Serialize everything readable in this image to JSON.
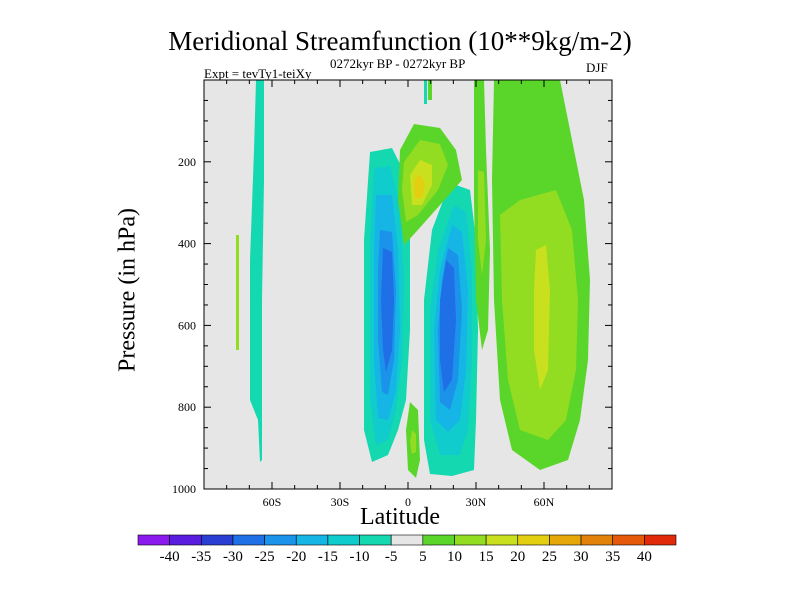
{
  "chart_data": {
    "type": "heatmap",
    "title": "Meridional Streamfunction (10**9kg/m-2)",
    "subtitle_left": "Expt = tevTy1-teiXy",
    "subtitle_center": "0272kyr BP - 0272kyr BP",
    "subtitle_right": "DJF",
    "xlabel": "Latitude",
    "ylabel": "Pressure (in hPa)",
    "xlim": [
      -90,
      90
    ],
    "ylim": [
      0,
      1000
    ],
    "y_inverted": true,
    "x_ticks": [
      {
        "value": -60,
        "label": "60S"
      },
      {
        "value": -30,
        "label": "30S"
      },
      {
        "value": 0,
        "label": "0"
      },
      {
        "value": 30,
        "label": "30N"
      },
      {
        "value": 60,
        "label": "60N"
      }
    ],
    "y_ticks": [
      {
        "value": 200,
        "label": "200"
      },
      {
        "value": 400,
        "label": "400"
      },
      {
        "value": 600,
        "label": "600"
      },
      {
        "value": 800,
        "label": "800"
      },
      {
        "value": 1000,
        "label": "1000"
      }
    ],
    "colorbar": {
      "levels": [
        -40,
        -35,
        -30,
        -25,
        -20,
        -15,
        -10,
        -5,
        5,
        10,
        15,
        20,
        25,
        30,
        35,
        40
      ],
      "colors": [
        "#8b1aef",
        "#5a1de0",
        "#2b3ed4",
        "#1f6fe6",
        "#1c93ea",
        "#15b5e6",
        "#10cccc",
        "#14d8b0",
        "#e6e6e6",
        "#5ad52a",
        "#92dc22",
        "#c8e01e",
        "#e3cf10",
        "#e5a808",
        "#e38208",
        "#e45a0a",
        "#e02a0a"
      ]
    },
    "background_color": "#e6e6e6",
    "features": [
      {
        "name": "southern high-latitude cell",
        "sign": "negative",
        "lat_range": [
          -66,
          -64
        ],
        "p_range": [
          0,
          920
        ],
        "peak": -7
      },
      {
        "name": "southern tropical cell",
        "sign": "negative",
        "lat_range": [
          -18,
          1
        ],
        "p_range": [
          170,
          950
        ],
        "peak": -27
      },
      {
        "name": "northern tropical cell",
        "sign": "negative",
        "lat_range": [
          7,
          27
        ],
        "p_range": [
          280,
          980
        ],
        "peak": -27
      },
      {
        "name": "upper equatorial positive",
        "sign": "positive",
        "lat_range": [
          -2,
          22
        ],
        "p_range": [
          150,
          400
        ],
        "peak": 17
      },
      {
        "name": "northern mid-latitude cell",
        "sign": "positive",
        "lat_range": [
          40,
          74
        ],
        "p_range": [
          80,
          950
        ],
        "peak": 15
      }
    ]
  }
}
